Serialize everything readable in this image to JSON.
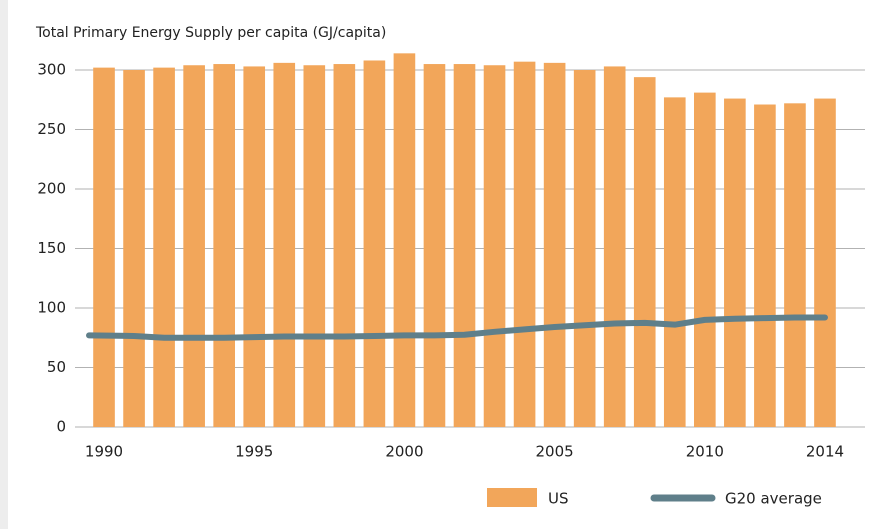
{
  "chart_data": {
    "type": "bar-line",
    "title": "Total Primary Energy Supply per capita (GJ/capita)",
    "categories": [
      "1990",
      null,
      null,
      null,
      null,
      "1995",
      null,
      null,
      null,
      null,
      "2000",
      null,
      null,
      null,
      null,
      "2005",
      null,
      null,
      null,
      null,
      "2010",
      null,
      null,
      null,
      "2014"
    ],
    "series": [
      {
        "name": "US",
        "type": "bar",
        "color": "#f2a65a",
        "values": [
          302,
          300,
          302,
          304,
          305,
          303,
          306,
          304,
          305,
          308,
          314,
          305,
          305,
          304,
          307,
          306,
          300,
          303,
          294,
          277,
          281,
          276,
          271,
          272,
          276
        ]
      },
      {
        "name": "G20 average",
        "type": "line",
        "color": "#5f7f8a",
        "values": [
          77,
          76.5,
          75,
          75,
          75,
          75.5,
          76,
          76,
          76,
          76.5,
          77,
          77,
          77.5,
          80,
          82,
          84,
          85.5,
          87,
          87.5,
          86,
          90,
          91,
          91.5,
          92,
          92
        ]
      }
    ],
    "ylim": [
      0,
      300
    ],
    "yticks": [
      0,
      50,
      100,
      150,
      200,
      250,
      300
    ],
    "grid": true
  }
}
